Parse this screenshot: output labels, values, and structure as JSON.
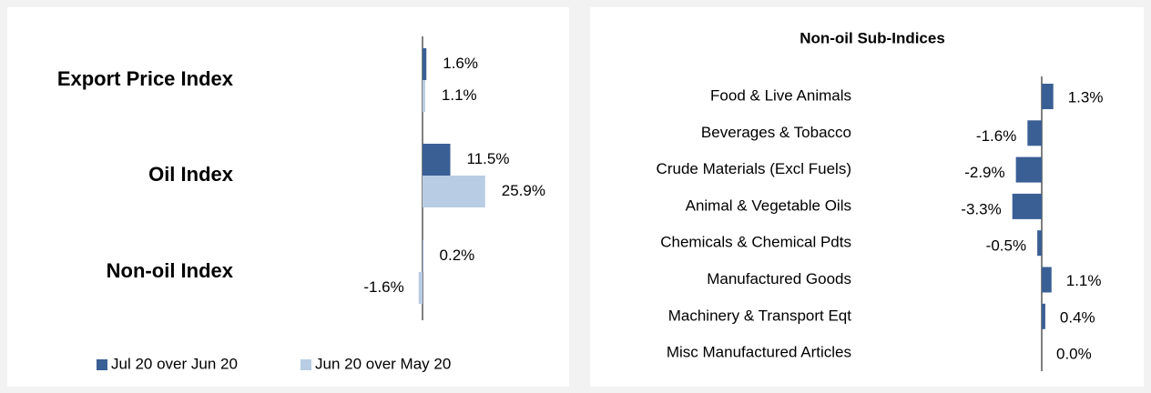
{
  "chart_data": [
    {
      "type": "bar",
      "orientation": "horizontal",
      "categories": [
        "Export Price Index",
        "Oil Index",
        "Non-oil Index"
      ],
      "series": [
        {
          "name": "Jul 20 over Jun 20",
          "color": "#3a5f95",
          "values": [
            1.6,
            11.5,
            0.2
          ],
          "value_labels": [
            "1.6%",
            "11.5%",
            "0.2%"
          ]
        },
        {
          "name": "Jun 20 over May 20",
          "color": "#b8cce4",
          "values": [
            1.1,
            25.9,
            -1.6
          ],
          "value_labels": [
            "1.1%",
            "25.9%",
            "-1.6%"
          ]
        }
      ],
      "legend": "bottom"
    },
    {
      "type": "bar",
      "orientation": "horizontal",
      "title": "Non-oil Sub-Indices",
      "categories": [
        "Food & Live Animals",
        "Beverages & Tobacco",
        "Crude Materials (Excl Fuels)",
        "Animal & Vegetable Oils",
        "Chemicals & Chemical Pdts",
        "Manufactured Goods",
        "Machinery & Transport Eqt",
        "Misc Manufactured Articles"
      ],
      "color": "#3a5f95",
      "values": [
        1.3,
        -1.6,
        -2.9,
        -3.3,
        -0.5,
        1.1,
        0.4,
        0.0
      ],
      "value_labels": [
        "1.3%",
        "-1.6%",
        "-2.9%",
        "-3.3%",
        "-0.5%",
        "1.1%",
        "0.4%",
        "0.0%"
      ]
    }
  ]
}
